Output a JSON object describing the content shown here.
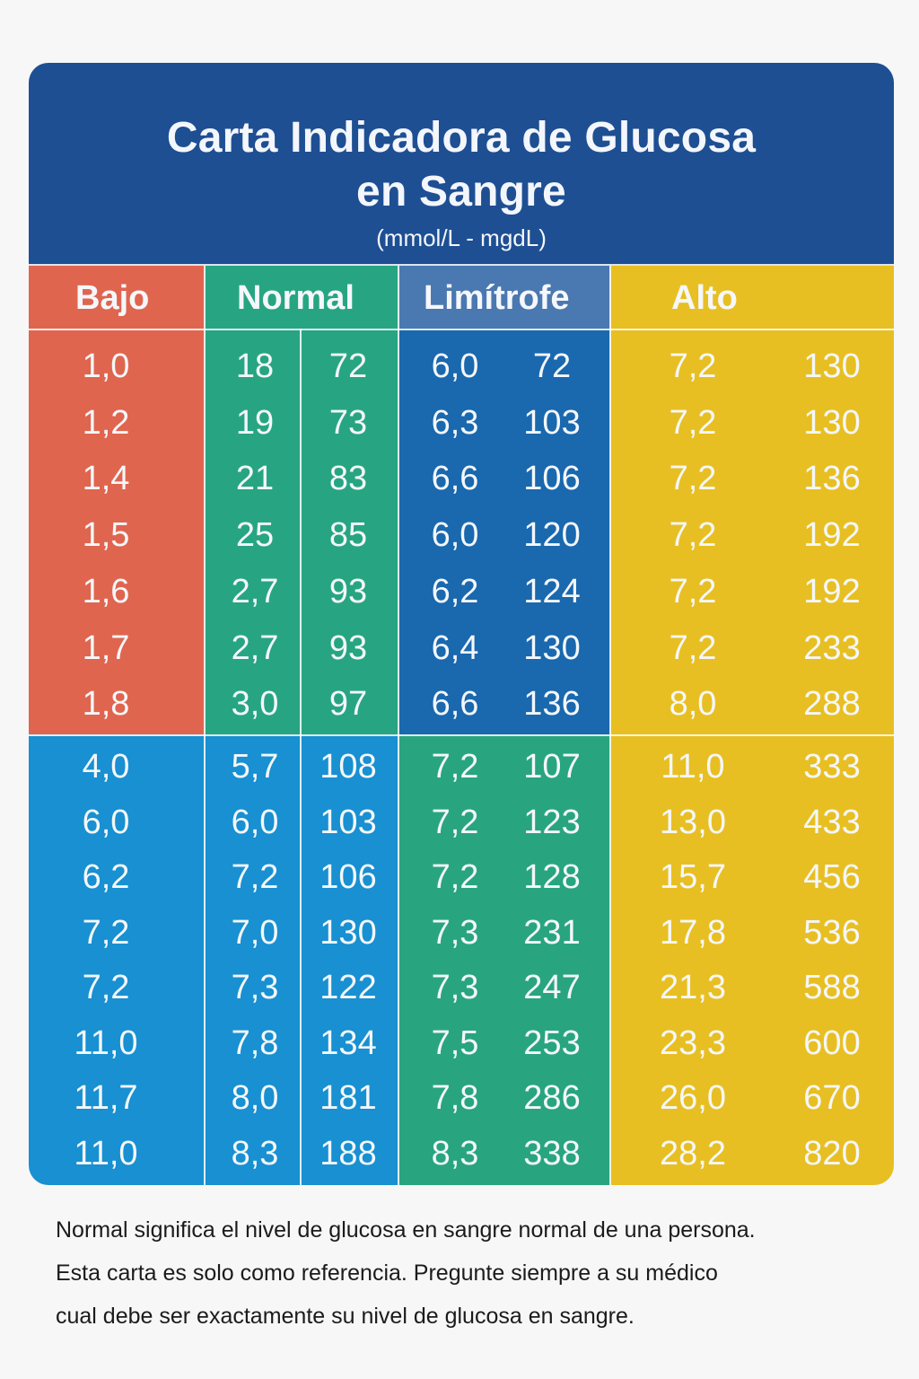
{
  "title_line1": "Carta Indicadora de Glucosa",
  "title_line2": "en Sangre",
  "subtitle": "(mmol/L - mgdL)",
  "colors": {
    "header": "#1e4f93",
    "bajo_top": "#e0654f",
    "normal_top": "#27a582",
    "limitrofe_top": "#1a68ae",
    "alto": "#e8bf22",
    "bottom_blue": "#1890d1",
    "bottom_green": "#28a57e",
    "limitrofe_header": "#4a78b0"
  },
  "headers": {
    "bajo": "Bajo",
    "normal": "Normal",
    "limitrofe": "Limítrofe",
    "alto": "Alto"
  },
  "top_rows": [
    [
      "1,0",
      "18",
      "72",
      "6,0",
      "72",
      "7,2",
      "130"
    ],
    [
      "1,2",
      "19",
      "73",
      "6,3",
      "103",
      "7,2",
      "130"
    ],
    [
      "1,4",
      "21",
      "83",
      "6,6",
      "106",
      "7,2",
      "136"
    ],
    [
      "1,5",
      "25",
      "85",
      "6,0",
      "120",
      "7,2",
      "192"
    ],
    [
      "1,6",
      "2,7",
      "93",
      "6,2",
      "124",
      "7,2",
      "192"
    ],
    [
      "1,7",
      "2,7",
      "93",
      "6,4",
      "130",
      "7,2",
      "233"
    ],
    [
      "1,8",
      "3,0",
      "97",
      "6,6",
      "136",
      "8,0",
      "288"
    ]
  ],
  "bottom_rows": [
    [
      "4,0",
      "5,7",
      "108",
      "7,2",
      "107",
      "11,0",
      "333"
    ],
    [
      "6,0",
      "6,0",
      "103",
      "7,2",
      "123",
      "13,0",
      "433"
    ],
    [
      "6,2",
      "7,2",
      "106",
      "7,2",
      "128",
      "15,7",
      "456"
    ],
    [
      "7,2",
      "7,0",
      "130",
      "7,3",
      "231",
      "17,8",
      "536"
    ],
    [
      "7,2",
      "7,3",
      "122",
      "7,3",
      "247",
      "21,3",
      "588"
    ],
    [
      "11,0",
      "7,8",
      "134",
      "7,5",
      "253",
      "23,3",
      "600"
    ],
    [
      "11,7",
      "8,0",
      "181",
      "7,8",
      "286",
      "26,0",
      "670"
    ],
    [
      "11,0",
      "8,3",
      "188",
      "8,3",
      "338",
      "28,2",
      "820"
    ]
  ],
  "footer": {
    "line1": "Normal significa el nivel de glucosa en sangre normal de una persona.",
    "line2": "Esta carta es solo como referencia. Pregunte siempre a su médico",
    "line3": "cual debe ser exactamente su nivel de glucosa en sangre."
  }
}
